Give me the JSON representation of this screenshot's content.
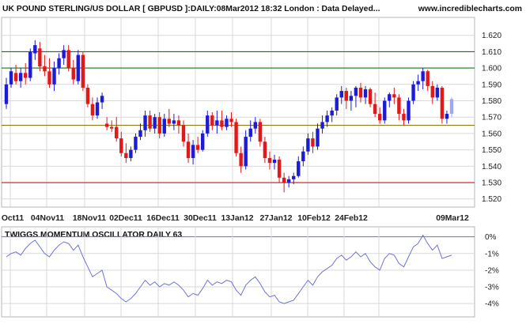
{
  "header": {
    "title": "UK POUND STERLING/US DOLLAR [ GBPUSD ]:DAILY:08Mar2012 18:32 London : Data Delayed...",
    "site": "www.incrediblecharts.com"
  },
  "colors": {
    "up": "#1c1cd6",
    "down": "#e01919",
    "latest": "#9fa8f0",
    "resistance": "#137a13",
    "middle": "#8a7a1a",
    "support": "#cc1414",
    "oscillator": "#6f73d8",
    "grid": "#d9d9d9",
    "axis_text": "#222222"
  },
  "chart_data": [
    {
      "type": "candlestick",
      "title": "UK POUND STERLING/US DOLLAR [ GBPUSD ]:DAILY:08Mar2012 18:32 London : Data Delayed...",
      "ylim": [
        1.514,
        1.632
      ],
      "y_ticks": [
        "1.520",
        "1.530",
        "1.540",
        "1.550",
        "1.560",
        "1.570",
        "1.580",
        "1.590",
        "1.600",
        "1.610",
        "1.620"
      ],
      "x_ticks": [
        "Oct11",
        "04Nov11",
        "18Nov11",
        "02Dec11",
        "16Dec11",
        "30Dec11",
        "13Jan12",
        "27Jan12",
        "10Feb12",
        "24Feb12",
        "09Mar12"
      ],
      "grid": true,
      "horizontal_lines": [
        {
          "value": 1.61,
          "role": "resistance"
        },
        {
          "value": 1.6,
          "role": "resistance"
        },
        {
          "value": 1.565,
          "role": "middle"
        },
        {
          "value": 1.53,
          "role": "support"
        }
      ],
      "candles": [
        {
          "o": 1.578,
          "h": 1.594,
          "l": 1.575,
          "c": 1.59
        },
        {
          "o": 1.59,
          "h": 1.6,
          "l": 1.588,
          "c": 1.598
        },
        {
          "o": 1.597,
          "h": 1.602,
          "l": 1.59,
          "c": 1.592
        },
        {
          "o": 1.592,
          "h": 1.6,
          "l": 1.588,
          "c": 1.597
        },
        {
          "o": 1.597,
          "h": 1.603,
          "l": 1.59,
          "c": 1.594
        },
        {
          "o": 1.594,
          "h": 1.612,
          "l": 1.592,
          "c": 1.61
        },
        {
          "o": 1.609,
          "h": 1.617,
          "l": 1.605,
          "c": 1.614
        },
        {
          "o": 1.612,
          "h": 1.616,
          "l": 1.598,
          "c": 1.601
        },
        {
          "o": 1.601,
          "h": 1.608,
          "l": 1.595,
          "c": 1.598
        },
        {
          "o": 1.598,
          "h": 1.606,
          "l": 1.588,
          "c": 1.59
        },
        {
          "o": 1.59,
          "h": 1.604,
          "l": 1.586,
          "c": 1.6
        },
        {
          "o": 1.6,
          "h": 1.609,
          "l": 1.596,
          "c": 1.606
        },
        {
          "o": 1.606,
          "h": 1.614,
          "l": 1.602,
          "c": 1.611
        },
        {
          "o": 1.611,
          "h": 1.614,
          "l": 1.598,
          "c": 1.6
        },
        {
          "o": 1.6,
          "h": 1.605,
          "l": 1.59,
          "c": 1.593
        },
        {
          "o": 1.592,
          "h": 1.611,
          "l": 1.59,
          "c": 1.608
        },
        {
          "o": 1.608,
          "h": 1.61,
          "l": 1.586,
          "c": 1.588
        },
        {
          "o": 1.588,
          "h": 1.59,
          "l": 1.576,
          "c": 1.578
        },
        {
          "o": 1.578,
          "h": 1.582,
          "l": 1.568,
          "c": 1.571
        },
        {
          "o": 1.571,
          "h": 1.582,
          "l": 1.569,
          "c": 1.579
        },
        {
          "o": 1.579,
          "h": 1.585,
          "l": 1.575,
          "c": 1.583
        },
        {
          "o": 1.566,
          "h": 1.57,
          "l": 1.562,
          "c": 1.564
        },
        {
          "o": 1.564,
          "h": 1.568,
          "l": 1.561,
          "c": 1.563
        },
        {
          "o": 1.564,
          "h": 1.57,
          "l": 1.555,
          "c": 1.557
        },
        {
          "o": 1.557,
          "h": 1.561,
          "l": 1.546,
          "c": 1.548
        },
        {
          "o": 1.548,
          "h": 1.554,
          "l": 1.542,
          "c": 1.545
        },
        {
          "o": 1.545,
          "h": 1.552,
          "l": 1.543,
          "c": 1.55
        },
        {
          "o": 1.55,
          "h": 1.56,
          "l": 1.548,
          "c": 1.558
        },
        {
          "o": 1.558,
          "h": 1.566,
          "l": 1.556,
          "c": 1.562
        },
        {
          "o": 1.562,
          "h": 1.574,
          "l": 1.558,
          "c": 1.571
        },
        {
          "o": 1.571,
          "h": 1.574,
          "l": 1.561,
          "c": 1.563
        },
        {
          "o": 1.563,
          "h": 1.572,
          "l": 1.56,
          "c": 1.57
        },
        {
          "o": 1.57,
          "h": 1.573,
          "l": 1.557,
          "c": 1.56
        },
        {
          "o": 1.56,
          "h": 1.572,
          "l": 1.558,
          "c": 1.569
        },
        {
          "o": 1.569,
          "h": 1.575,
          "l": 1.564,
          "c": 1.566
        },
        {
          "o": 1.566,
          "h": 1.572,
          "l": 1.562,
          "c": 1.568
        },
        {
          "o": 1.568,
          "h": 1.571,
          "l": 1.56,
          "c": 1.565
        },
        {
          "o": 1.565,
          "h": 1.568,
          "l": 1.552,
          "c": 1.555
        },
        {
          "o": 1.555,
          "h": 1.56,
          "l": 1.542,
          "c": 1.545
        },
        {
          "o": 1.545,
          "h": 1.556,
          "l": 1.541,
          "c": 1.553
        },
        {
          "o": 1.553,
          "h": 1.558,
          "l": 1.548,
          "c": 1.55
        },
        {
          "o": 1.55,
          "h": 1.562,
          "l": 1.549,
          "c": 1.56
        },
        {
          "o": 1.56,
          "h": 1.574,
          "l": 1.558,
          "c": 1.571
        },
        {
          "o": 1.571,
          "h": 1.573,
          "l": 1.562,
          "c": 1.565
        },
        {
          "o": 1.565,
          "h": 1.574,
          "l": 1.56,
          "c": 1.568
        },
        {
          "o": 1.568,
          "h": 1.574,
          "l": 1.562,
          "c": 1.564
        },
        {
          "o": 1.564,
          "h": 1.571,
          "l": 1.562,
          "c": 1.569
        },
        {
          "o": 1.569,
          "h": 1.573,
          "l": 1.564,
          "c": 1.567
        },
        {
          "o": 1.567,
          "h": 1.569,
          "l": 1.546,
          "c": 1.548
        },
        {
          "o": 1.548,
          "h": 1.552,
          "l": 1.536,
          "c": 1.54
        },
        {
          "o": 1.54,
          "h": 1.562,
          "l": 1.538,
          "c": 1.558
        },
        {
          "o": 1.558,
          "h": 1.568,
          "l": 1.555,
          "c": 1.563
        },
        {
          "o": 1.563,
          "h": 1.57,
          "l": 1.56,
          "c": 1.567
        },
        {
          "o": 1.567,
          "h": 1.569,
          "l": 1.552,
          "c": 1.555
        },
        {
          "o": 1.555,
          "h": 1.558,
          "l": 1.542,
          "c": 1.545
        },
        {
          "o": 1.545,
          "h": 1.549,
          "l": 1.538,
          "c": 1.542
        },
        {
          "o": 1.542,
          "h": 1.547,
          "l": 1.538,
          "c": 1.544
        },
        {
          "o": 1.544,
          "h": 1.546,
          "l": 1.53,
          "c": 1.533
        },
        {
          "o": 1.533,
          "h": 1.536,
          "l": 1.524,
          "c": 1.53
        },
        {
          "o": 1.53,
          "h": 1.534,
          "l": 1.527,
          "c": 1.532
        },
        {
          "o": 1.532,
          "h": 1.536,
          "l": 1.529,
          "c": 1.534
        },
        {
          "o": 1.534,
          "h": 1.546,
          "l": 1.533,
          "c": 1.543
        },
        {
          "o": 1.543,
          "h": 1.552,
          "l": 1.54,
          "c": 1.549
        },
        {
          "o": 1.549,
          "h": 1.56,
          "l": 1.547,
          "c": 1.557
        },
        {
          "o": 1.557,
          "h": 1.561,
          "l": 1.548,
          "c": 1.552
        },
        {
          "o": 1.552,
          "h": 1.566,
          "l": 1.55,
          "c": 1.563
        },
        {
          "o": 1.563,
          "h": 1.571,
          "l": 1.56,
          "c": 1.567
        },
        {
          "o": 1.567,
          "h": 1.574,
          "l": 1.564,
          "c": 1.571
        },
        {
          "o": 1.571,
          "h": 1.576,
          "l": 1.567,
          "c": 1.574
        },
        {
          "o": 1.574,
          "h": 1.584,
          "l": 1.571,
          "c": 1.582
        },
        {
          "o": 1.582,
          "h": 1.589,
          "l": 1.578,
          "c": 1.586
        },
        {
          "o": 1.586,
          "h": 1.588,
          "l": 1.575,
          "c": 1.58
        },
        {
          "o": 1.58,
          "h": 1.586,
          "l": 1.574,
          "c": 1.583
        },
        {
          "o": 1.583,
          "h": 1.589,
          "l": 1.576,
          "c": 1.588
        },
        {
          "o": 1.588,
          "h": 1.591,
          "l": 1.579,
          "c": 1.582
        },
        {
          "o": 1.582,
          "h": 1.589,
          "l": 1.578,
          "c": 1.587
        },
        {
          "o": 1.587,
          "h": 1.588,
          "l": 1.576,
          "c": 1.578
        },
        {
          "o": 1.578,
          "h": 1.585,
          "l": 1.57,
          "c": 1.572
        },
        {
          "o": 1.572,
          "h": 1.576,
          "l": 1.566,
          "c": 1.568
        },
        {
          "o": 1.568,
          "h": 1.582,
          "l": 1.566,
          "c": 1.58
        },
        {
          "o": 1.58,
          "h": 1.585,
          "l": 1.576,
          "c": 1.584
        },
        {
          "o": 1.584,
          "h": 1.588,
          "l": 1.578,
          "c": 1.582
        },
        {
          "o": 1.582,
          "h": 1.584,
          "l": 1.568,
          "c": 1.572
        },
        {
          "o": 1.572,
          "h": 1.575,
          "l": 1.565,
          "c": 1.568
        },
        {
          "o": 1.568,
          "h": 1.582,
          "l": 1.566,
          "c": 1.58
        },
        {
          "o": 1.58,
          "h": 1.592,
          "l": 1.578,
          "c": 1.59
        },
        {
          "o": 1.59,
          "h": 1.596,
          "l": 1.586,
          "c": 1.592
        },
        {
          "o": 1.592,
          "h": 1.6,
          "l": 1.587,
          "c": 1.598
        },
        {
          "o": 1.598,
          "h": 1.599,
          "l": 1.586,
          "c": 1.589
        },
        {
          "o": 1.589,
          "h": 1.592,
          "l": 1.578,
          "c": 1.582
        },
        {
          "o": 1.582,
          "h": 1.59,
          "l": 1.58,
          "c": 1.588
        },
        {
          "o": 1.588,
          "h": 1.589,
          "l": 1.566,
          "c": 1.569
        },
        {
          "o": 1.569,
          "h": 1.574,
          "l": 1.566,
          "c": 1.572
        },
        {
          "o": 1.572,
          "h": 1.582,
          "l": 1.57,
          "c": 1.581
        }
      ]
    },
    {
      "type": "line",
      "title": "TWIGGS MOMENTUM OSCILLATOR DAILY 63",
      "ylim": [
        -4.7,
        0.5
      ],
      "y_ticks": [
        "0%",
        "-1%",
        "-2%",
        "-3%",
        "-4%"
      ],
      "series": [
        {
          "values": [
            -1.2,
            -1.0,
            -0.9,
            -1.1,
            -0.7,
            -0.4,
            -0.2,
            -0.6,
            -1.0,
            -1.2,
            -0.8,
            -0.5,
            -0.3,
            -0.4,
            -0.8,
            -0.5,
            -1.2,
            -1.8,
            -2.4,
            -2.2,
            -2.0,
            -3.0,
            -3.2,
            -3.4,
            -3.7,
            -3.9,
            -3.7,
            -3.4,
            -3.0,
            -2.6,
            -2.9,
            -2.7,
            -3.0,
            -2.8,
            -2.9,
            -2.7,
            -2.9,
            -3.2,
            -3.6,
            -3.4,
            -3.5,
            -3.1,
            -2.6,
            -2.9,
            -2.7,
            -2.8,
            -2.6,
            -2.7,
            -3.2,
            -3.5,
            -2.9,
            -2.6,
            -2.4,
            -2.8,
            -3.3,
            -3.6,
            -3.5,
            -3.9,
            -4.0,
            -3.9,
            -3.8,
            -3.4,
            -3.0,
            -2.6,
            -2.9,
            -2.4,
            -2.1,
            -1.9,
            -1.7,
            -1.3,
            -1.1,
            -1.4,
            -1.2,
            -0.9,
            -1.2,
            -1.0,
            -1.5,
            -1.8,
            -2.0,
            -1.3,
            -1.0,
            -1.1,
            -1.6,
            -1.8,
            -1.2,
            -0.6,
            -0.4,
            0.1,
            -0.4,
            -0.8,
            -0.5,
            -1.3,
            -1.2,
            -1.1
          ]
        }
      ]
    }
  ]
}
